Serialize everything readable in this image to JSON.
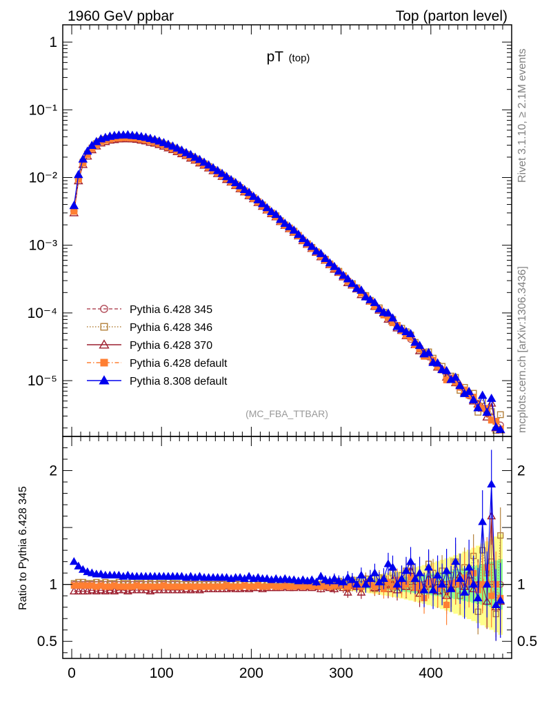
{
  "header": {
    "left": "1960 GeV ppbar",
    "right": "Top (parton level)"
  },
  "side_labels": {
    "rivet": "Rivet 3.1.10, ≥ 2.1M events",
    "mcplots": "mcplots.cern.ch [arXiv:1306.3436]"
  },
  "chart_data": {
    "type": "scatter",
    "title_main": "pT",
    "title_sub": "(top)",
    "watermark": "(MC_FBA_TTBAR)",
    "xlim": [
      -10,
      490
    ],
    "main": {
      "yscale": "log",
      "ylim": [
        1.5e-06,
        1.8
      ],
      "ytick_labels": [
        "1",
        "10⁻¹",
        "10⁻²",
        "10⁻³",
        "10⁻⁴",
        "10⁻⁵"
      ],
      "ytick_values": [
        1,
        0.1,
        0.01,
        0.001,
        0.0001,
        1e-05
      ]
    },
    "ratio": {
      "ylabel": "Ratio to Pythia 6.428 345",
      "ylim": [
        0.35,
        2.3
      ],
      "ytick_labels": [
        "0.5",
        "1",
        "2"
      ],
      "ytick_values": [
        0.5,
        1,
        2
      ],
      "band_colors": [
        "#ffff8c",
        "#8cff8c"
      ]
    },
    "xtick_labels": [
      "0",
      "100",
      "200",
      "300",
      "400"
    ],
    "xtick_values": [
      0,
      100,
      200,
      300,
      400
    ],
    "legend_position": "lower-left",
    "series": [
      {
        "name": "Pythia 6.428 345",
        "color": "#b24d5a",
        "marker": "circle-open",
        "line": "dashed"
      },
      {
        "name": "Pythia 6.428 346",
        "color": "#b3803a",
        "marker": "square-open",
        "line": "dotted"
      },
      {
        "name": "Pythia 6.428 370",
        "color": "#9c1e2e",
        "marker": "triangle-open",
        "line": "solid"
      },
      {
        "name": "Pythia 6.428 default",
        "color": "#ff7f32",
        "marker": "square-filled",
        "line": "dashdot"
      },
      {
        "name": "Pythia 8.308 default",
        "color": "#0000ee",
        "marker": "triangle-filled",
        "line": "solid"
      }
    ],
    "x": [
      2.5,
      7.5,
      12.5,
      17.5,
      22.5,
      27.5,
      32.5,
      37.5,
      42.5,
      47.5,
      52.5,
      57.5,
      62.5,
      67.5,
      72.5,
      77.5,
      82.5,
      87.5,
      92.5,
      97.5,
      102.5,
      107.5,
      112.5,
      117.5,
      122.5,
      127.5,
      132.5,
      137.5,
      142.5,
      147.5,
      152.5,
      157.5,
      162.5,
      167.5,
      172.5,
      177.5,
      182.5,
      187.5,
      192.5,
      197.5,
      202.5,
      207.5,
      212.5,
      217.5,
      222.5,
      227.5,
      232.5,
      237.5,
      242.5,
      247.5,
      252.5,
      257.5,
      262.5,
      267.5,
      272.5,
      277.5,
      282.5,
      287.5,
      292.5,
      297.5,
      302.5,
      307.5,
      312.5,
      317.5,
      322.5,
      327.5,
      332.5,
      337.5,
      342.5,
      347.5,
      352.5,
      357.5,
      362.5,
      367.5,
      372.5,
      377.5,
      382.5,
      387.5,
      392.5,
      397.5,
      402.5,
      407.5,
      412.5,
      417.5,
      422.5,
      427.5,
      432.5,
      437.5,
      442.5,
      447.5,
      452.5,
      457.5,
      462.5,
      467.5,
      472.5,
      477.5
    ],
    "ref_values": [
      0.0032,
      0.0095,
      0.0165,
      0.022,
      0.027,
      0.031,
      0.034,
      0.036,
      0.0375,
      0.0385,
      0.039,
      0.0395,
      0.0395,
      0.039,
      0.0385,
      0.0375,
      0.0365,
      0.0352,
      0.0338,
      0.0322,
      0.0305,
      0.0288,
      0.0271,
      0.0253,
      0.0236,
      0.0219,
      0.0203,
      0.0187,
      0.0172,
      0.0158,
      0.0144,
      0.0131,
      0.0119,
      0.0108,
      0.0097,
      0.0088,
      0.0079,
      0.0071,
      0.0063,
      0.0056,
      0.005,
      0.0044,
      0.0039,
      0.0034,
      0.003,
      0.0027,
      0.0023,
      0.002,
      0.0018,
      0.0016,
      0.0014,
      0.0012,
      0.00105,
      0.00092,
      0.0008,
      0.0007,
      0.00061,
      0.00053,
      0.00046,
      0.0004,
      0.00035,
      0.0003,
      0.00026,
      0.00023,
      0.0002,
      0.000172,
      0.000149,
      0.000129,
      0.000112,
      9.7e-05,
      8.4e-05,
      7.3e-05,
      6.3e-05,
      5.5e-05,
      4.7e-05,
      4.1e-05,
      3.5e-05,
      3e-05,
      2.6e-05,
      2.25e-05,
      1.95e-05,
      1.68e-05,
      1.45e-05,
      1.25e-05,
      1.08e-05,
      9.3e-06,
      8e-06,
      6.9e-06,
      6e-06,
      5.2e-06,
      4.5e-06,
      3.9e-06,
      3.4e-06,
      2.9e-06,
      2.5e-06,
      2.2e-06
    ],
    "ratios": [
      [
        1.0,
        1.0,
        1.0,
        1.0,
        1.0,
        1.0,
        1.0,
        1.0,
        1.0,
        1.0,
        1.0,
        1.0,
        1.0,
        1.0,
        1.0,
        1.0,
        1.0,
        1.0,
        1.0,
        1.0,
        1.0,
        1.0,
        1.0,
        1.0,
        1.0,
        1.0,
        1.0,
        1.0,
        1.0,
        1.0,
        1.0,
        1.0,
        1.0,
        1.0,
        1.0,
        1.0,
        1.0,
        1.0,
        1.0,
        1.0,
        1.0,
        1.0,
        1.0,
        1.0,
        1.0,
        1.0,
        1.0,
        1.0,
        1.0,
        1.0,
        1.0,
        1.0,
        1.0,
        1.0,
        1.0,
        1.0,
        1.0,
        1.0,
        1.0,
        1.0,
        1.0,
        1.0,
        1.0,
        1.0,
        1.0,
        1.0,
        1.0,
        1.0,
        1.0,
        1.0,
        1.0,
        1.0,
        1.0,
        1.0,
        1.0,
        1.0,
        1.0,
        1.0,
        1.0,
        1.0,
        1.0,
        1.0,
        1.0,
        1.0,
        1.0,
        1.0,
        1.0,
        1.0,
        1.0,
        1.0,
        1.0,
        1.0,
        1.0,
        1.0,
        1.0,
        1.0
      ],
      [
        1.01,
        1.02,
        1.02,
        1.01,
        1.01,
        1.02,
        1.01,
        1.02,
        1.01,
        1.01,
        1.02,
        1.01,
        1.01,
        1.02,
        1.01,
        1.01,
        1.02,
        1.01,
        1.02,
        1.01,
        1.01,
        1.02,
        1.01,
        1.01,
        1.0,
        1.01,
        1.01,
        1.01,
        1.0,
        1.01,
        1.01,
        1.0,
        1.01,
        1.01,
        1.0,
        1.01,
        1.01,
        1.0,
        1.01,
        1.0,
        1.01,
        1.0,
        1.01,
        1.0,
        1.0,
        1.01,
        1.0,
        1.0,
        1.0,
        1.01,
        1.0,
        0.99,
        1.0,
        1.01,
        1.0,
        0.99,
        1.02,
        1.0,
        0.98,
        1.03,
        1.01,
        0.97,
        1.04,
        1.02,
        0.98,
        1.05,
        1.03,
        0.96,
        1.06,
        1.05,
        1.02,
        1.1,
        1.0,
        1.08,
        1.12,
        1.15,
        1.05,
        0.97,
        0.92,
        1.18,
        1.1,
        1.0,
        1.12,
        0.95,
        1.08,
        1.2,
        0.9,
        1.15,
        1.08,
        1.25,
        0.76,
        1.3,
        1.1,
        1.2,
        0.74,
        1.43
      ],
      [
        0.94,
        0.94,
        0.94,
        0.94,
        0.95,
        0.94,
        0.95,
        0.94,
        0.95,
        0.94,
        0.95,
        0.95,
        0.94,
        0.95,
        0.95,
        0.95,
        0.95,
        0.94,
        0.95,
        0.95,
        0.95,
        0.95,
        0.95,
        0.95,
        0.95,
        0.96,
        0.95,
        0.96,
        0.95,
        0.96,
        0.96,
        0.96,
        0.96,
        0.96,
        0.96,
        0.97,
        0.96,
        0.96,
        0.97,
        0.96,
        0.97,
        0.97,
        0.96,
        0.97,
        0.97,
        0.97,
        0.97,
        0.98,
        0.97,
        0.97,
        0.98,
        0.97,
        0.98,
        0.97,
        0.98,
        0.96,
        0.98,
        0.97,
        0.96,
        0.99,
        0.97,
        0.93,
        0.99,
        0.98,
        0.93,
        1.02,
        1.0,
        0.97,
        0.98,
        1.02,
        0.96,
        1.04,
        0.95,
        1.0,
        0.98,
        1.12,
        0.97,
        0.92,
        0.98,
        1.05,
        1.0,
        0.94,
        1.02,
        0.9,
        0.97,
        1.0,
        1.08,
        0.98,
        1.08,
        0.96,
        1.0,
        1.0,
        0.85,
        1.6,
        0.8,
        0.85
      ],
      [
        0.99,
        0.99,
        0.99,
        0.99,
        0.99,
        0.98,
        0.99,
        0.98,
        0.98,
        0.99,
        0.98,
        0.98,
        0.98,
        0.98,
        0.99,
        0.98,
        0.98,
        0.98,
        0.98,
        0.98,
        0.99,
        0.98,
        0.98,
        0.98,
        0.98,
        0.98,
        0.98,
        0.98,
        0.98,
        0.98,
        0.98,
        0.98,
        0.98,
        0.98,
        0.99,
        0.98,
        0.98,
        0.98,
        0.99,
        0.98,
        0.98,
        0.99,
        0.98,
        0.98,
        0.99,
        0.98,
        0.98,
        0.99,
        0.98,
        0.98,
        0.99,
        0.98,
        0.99,
        0.98,
        0.99,
        0.98,
        0.99,
        0.98,
        0.99,
        1.0,
        0.99,
        0.98,
        1.0,
        0.99,
        0.98,
        1.01,
        1.0,
        0.98,
        1.0,
        0.96,
        1.02,
        0.98,
        1.04,
        0.99,
        1.0,
        1.06,
        0.97,
        0.99,
        0.88,
        1.02,
        1.03,
        0.96,
        0.99,
        0.82,
        1.01,
        1.02,
        1.0,
        1.06,
        1.02,
        1.1,
        0.95,
        1.0,
        1.15,
        0.9,
        1.0,
        0.88
      ],
      [
        1.2,
        1.16,
        1.13,
        1.11,
        1.1,
        1.09,
        1.09,
        1.08,
        1.08,
        1.08,
        1.08,
        1.07,
        1.08,
        1.07,
        1.07,
        1.07,
        1.07,
        1.07,
        1.07,
        1.07,
        1.07,
        1.07,
        1.07,
        1.07,
        1.07,
        1.06,
        1.07,
        1.06,
        1.07,
        1.06,
        1.06,
        1.06,
        1.06,
        1.06,
        1.06,
        1.05,
        1.06,
        1.06,
        1.05,
        1.07,
        1.05,
        1.06,
        1.05,
        1.05,
        1.04,
        1.05,
        1.04,
        1.05,
        1.04,
        1.04,
        1.03,
        1.04,
        1.03,
        1.04,
        1.02,
        1.07,
        1.04,
        1.03,
        1.05,
        1.03,
        1.02,
        1.06,
        1.04,
        1.0,
        1.08,
        1.0,
        1.05,
        1.1,
        1.02,
        1.05,
        1.18,
        1.15,
        1.0,
        1.05,
        1.12,
        1.2,
        1.05,
        1.1,
        0.95,
        1.15,
        0.95,
        1.08,
        1.0,
        1.12,
        0.96,
        1.2,
        1.05,
        0.93,
        1.15,
        1.0,
        0.88,
        1.55,
        1.0,
        1.88,
        0.82,
        0.86
      ]
    ]
  }
}
